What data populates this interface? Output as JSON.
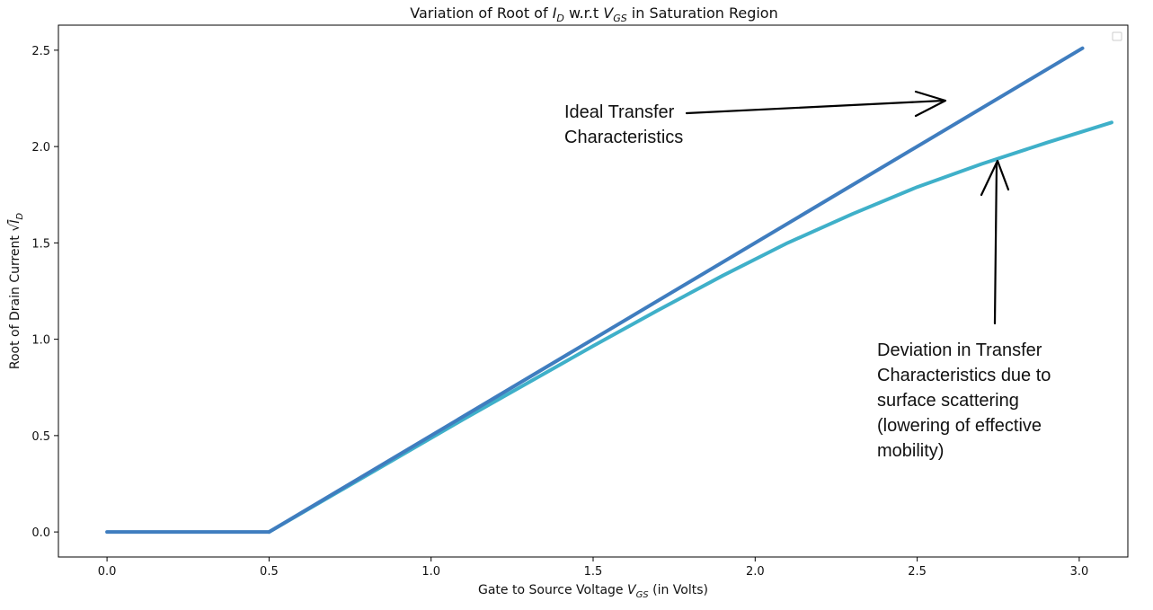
{
  "chart_data": {
    "type": "line",
    "title": {
      "prefix": "Variation of Root of ",
      "var1": "I",
      "var1_sub": "D",
      "middle": " w.r.t ",
      "var2": "V",
      "var2_sub": "GS",
      "suffix": " in Saturation Region"
    },
    "xlabel": {
      "prefix": "Gate to Source Voltage ",
      "var": "V",
      "var_sub": "GS",
      "suffix": " (in Volts)"
    },
    "ylabel": {
      "prefix": "Root of Drain Current ",
      "radical": "√",
      "var": "I",
      "var_sub": "D"
    },
    "xlim": [
      -0.15,
      3.15
    ],
    "ylim": [
      -0.13,
      2.63
    ],
    "xticks": [
      0.0,
      0.5,
      1.0,
      1.5,
      2.0,
      2.5,
      3.0
    ],
    "yticks": [
      0.0,
      0.5,
      1.0,
      1.5,
      2.0,
      2.5
    ],
    "tick_format_decimals": 1,
    "legend": "top-right (empty)",
    "grid": false,
    "series": [
      {
        "color": "#3f7dbf",
        "x": [
          0.0,
          0.5,
          3.01
        ],
        "y": [
          0.0,
          0.0,
          2.51
        ]
      },
      {
        "color": "#3fb0c9",
        "x": [
          0.5,
          0.7,
          0.9,
          1.1,
          1.3,
          1.5,
          1.7,
          1.9,
          2.1,
          2.3,
          2.5,
          2.7,
          2.9,
          3.1
        ],
        "y": [
          0.0,
          0.195,
          0.39,
          0.585,
          0.775,
          0.965,
          1.15,
          1.33,
          1.5,
          1.65,
          1.79,
          1.91,
          2.02,
          2.125
        ]
      }
    ],
    "annotations": [
      {
        "lines": [
          "Ideal Transfer",
          "Characteristics"
        ]
      },
      {
        "lines": [
          "Deviation in Transfer",
          "Characteristics due to",
          "surface scattering",
          "(lowering of effective",
          "mobility)"
        ]
      }
    ]
  }
}
